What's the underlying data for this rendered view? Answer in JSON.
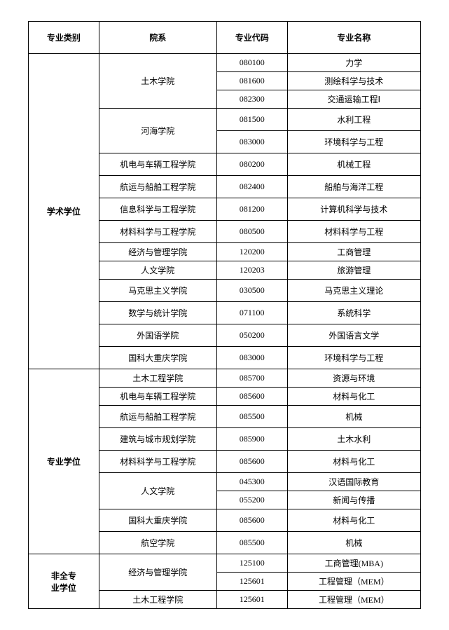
{
  "headers": {
    "category": "专业类别",
    "department": "院系",
    "code": "专业代码",
    "major": "专业名称"
  },
  "categories": [
    {
      "name": "学术学位",
      "rows": [
        {
          "dept": "土木学院",
          "code": "080100",
          "major": "力学",
          "deptSpan": 3
        },
        {
          "dept": "",
          "code": "081600",
          "major": "测绘科学与技术"
        },
        {
          "dept": "",
          "code": "082300",
          "major": "交通运输工程Ⅰ"
        },
        {
          "dept": "河海学院",
          "code": "081500",
          "major": "水利工程",
          "deptSpan": 2,
          "tall": true
        },
        {
          "dept": "",
          "code": "083000",
          "major": "环境科学与工程",
          "tall": true
        },
        {
          "dept": "机电与车辆工程学院",
          "code": "080200",
          "major": "机械工程",
          "tall": true
        },
        {
          "dept": "航运与船舶工程学院",
          "code": "082400",
          "major": "船舶与海洋工程",
          "tall": true
        },
        {
          "dept": "信息科学与工程学院",
          "code": "081200",
          "major": "计算机科学与技术",
          "tall": true
        },
        {
          "dept": "材料科学与工程学院",
          "code": "080500",
          "major": "材料科学与工程",
          "tall": true
        },
        {
          "dept": "经济与管理学院",
          "code": "120200",
          "major": "工商管理"
        },
        {
          "dept": "人文学院",
          "code": "120203",
          "major": "旅游管理"
        },
        {
          "dept": "马克思主义学院",
          "code": "030500",
          "major": "马克思主义理论",
          "tall": true
        },
        {
          "dept": "数学与统计学院",
          "code": "071100",
          "major": "系统科学",
          "tall": true
        },
        {
          "dept": "外国语学院",
          "code": "050200",
          "major": "外国语言文学",
          "tall": true
        },
        {
          "dept": "国科大重庆学院",
          "code": "083000",
          "major": "环境科学与工程",
          "tall": true
        }
      ]
    },
    {
      "name": "专业学位",
      "rows": [
        {
          "dept": "土木工程学院",
          "code": "085700",
          "major": "资源与环境"
        },
        {
          "dept": "机电与车辆工程学院",
          "code": "085600",
          "major": "材料与化工"
        },
        {
          "dept": "航运与船舶工程学院",
          "code": "085500",
          "major": "机械",
          "tall": true
        },
        {
          "dept": "建筑与城市规划学院",
          "code": "085900",
          "major": "土木水利",
          "tall": true
        },
        {
          "dept": "材料科学与工程学院",
          "code": "085600",
          "major": "材料与化工",
          "tall": true
        },
        {
          "dept": "人文学院",
          "code": "045300",
          "major": "汉语国际教育",
          "deptSpan": 2
        },
        {
          "dept": "",
          "code": "055200",
          "major": "新闻与传播"
        },
        {
          "dept": "国科大重庆学院",
          "code": "085600",
          "major": "材料与化工",
          "tall": true
        },
        {
          "dept": "航空学院",
          "code": "085500",
          "major": "机械",
          "tall": true
        }
      ]
    },
    {
      "name": "非全专业学位",
      "rows": [
        {
          "dept": "经济与管理学院",
          "code": "125100",
          "major": "工商管理(MBA)",
          "deptSpan": 2
        },
        {
          "dept": "",
          "code": "125601",
          "major": "工程管理（MEM）"
        },
        {
          "dept": "土木工程学院",
          "code": "125601",
          "major": "工程管理（MEM）"
        }
      ]
    }
  ]
}
